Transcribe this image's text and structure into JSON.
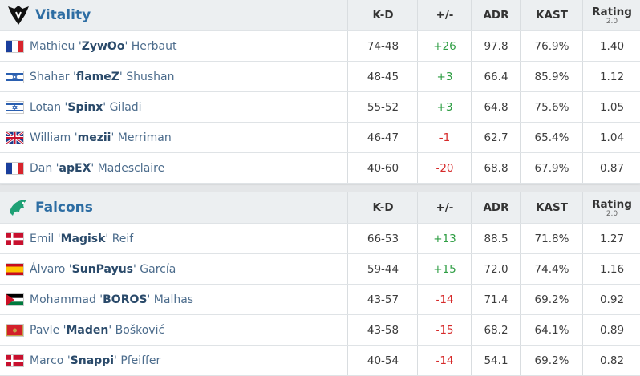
{
  "teams": [
    {
      "name": "Vitality",
      "headers": [
        "K-D",
        "+/-",
        "ADR",
        "KAST",
        "Rating"
      ],
      "rating_sub": "2.0",
      "players": [
        {
          "first": "Mathieu '",
          "nick": "ZywOo",
          "last": "' Herbaut",
          "kd": "74-48",
          "diff": "+26",
          "adr": "97.8",
          "kast": "76.9%",
          "rating": "1.40"
        },
        {
          "first": "Shahar '",
          "nick": "flameZ",
          "last": "' Shushan",
          "kd": "48-45",
          "diff": "+3",
          "adr": "66.4",
          "kast": "85.9%",
          "rating": "1.12"
        },
        {
          "first": "Lotan '",
          "nick": "Spinx",
          "last": "' Giladi",
          "kd": "55-52",
          "diff": "+3",
          "adr": "64.8",
          "kast": "75.6%",
          "rating": "1.05"
        },
        {
          "first": "William '",
          "nick": "mezii",
          "last": "' Merriman",
          "kd": "46-47",
          "diff": "-1",
          "adr": "62.7",
          "kast": "65.4%",
          "rating": "1.04"
        },
        {
          "first": "Dan '",
          "nick": "apEX",
          "last": "' Madesclaire",
          "kd": "40-60",
          "diff": "-20",
          "adr": "68.8",
          "kast": "67.9%",
          "rating": "0.87"
        }
      ]
    },
    {
      "name": "Falcons",
      "headers": [
        "K-D",
        "+/-",
        "ADR",
        "KAST",
        "Rating"
      ],
      "rating_sub": "2.0",
      "players": [
        {
          "first": "Emil '",
          "nick": "Magisk",
          "last": "' Reif",
          "kd": "66-53",
          "diff": "+13",
          "adr": "88.5",
          "kast": "71.8%",
          "rating": "1.27"
        },
        {
          "first": "Álvaro '",
          "nick": "SunPayus",
          "last": "' García",
          "kd": "59-44",
          "diff": "+15",
          "adr": "72.0",
          "kast": "74.4%",
          "rating": "1.16"
        },
        {
          "first": "Mohammad '",
          "nick": "BOROS",
          "last": "' Malhas",
          "kd": "43-57",
          "diff": "-14",
          "adr": "71.4",
          "kast": "69.2%",
          "rating": "0.92"
        },
        {
          "first": "Pavle '",
          "nick": "Maden",
          "last": "' Bošković",
          "kd": "43-58",
          "diff": "-15",
          "adr": "68.2",
          "kast": "64.1%",
          "rating": "0.89"
        },
        {
          "first": "Marco '",
          "nick": "Snappi",
          "last": "' Pfeiffer",
          "kd": "40-54",
          "diff": "-14",
          "adr": "54.1",
          "kast": "69.2%",
          "rating": "0.82"
        }
      ]
    }
  ]
}
